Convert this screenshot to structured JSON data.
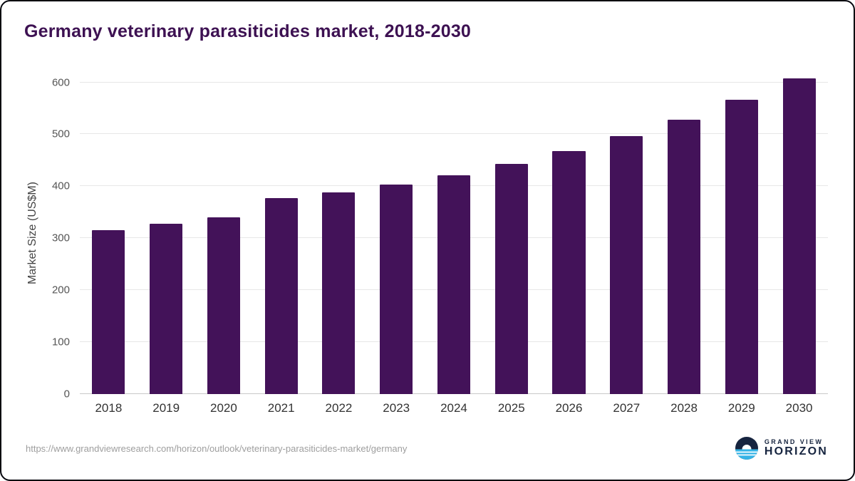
{
  "colors": {
    "bar": "#431259",
    "title": "#3d1152",
    "brand_navy": "#16243f",
    "brand_blue": "#35b4e6",
    "grid": "#e7e7e7",
    "axis_text": "#555555"
  },
  "chart_data": {
    "type": "bar",
    "title": "Germany veterinary parasiticides market, 2018-2030",
    "categories": [
      "2018",
      "2019",
      "2020",
      "2021",
      "2022",
      "2023",
      "2024",
      "2025",
      "2026",
      "2027",
      "2028",
      "2029",
      "2030"
    ],
    "values": [
      315,
      328,
      340,
      377,
      388,
      403,
      421,
      443,
      468,
      496,
      528,
      566,
      607
    ],
    "xlabel": "",
    "ylabel": "Market Size (US$M)",
    "ylim": [
      0,
      620
    ],
    "yticks": [
      0,
      100,
      200,
      300,
      400,
      500,
      600
    ],
    "grid": "horizontal",
    "legend": "none"
  },
  "footer": {
    "source_url": "https://www.grandviewresearch.com/horizon/outlook/veterinary-parasiticides-market/germany",
    "brand_top": "GRAND VIEW",
    "brand_bottom": "HORIZON"
  }
}
